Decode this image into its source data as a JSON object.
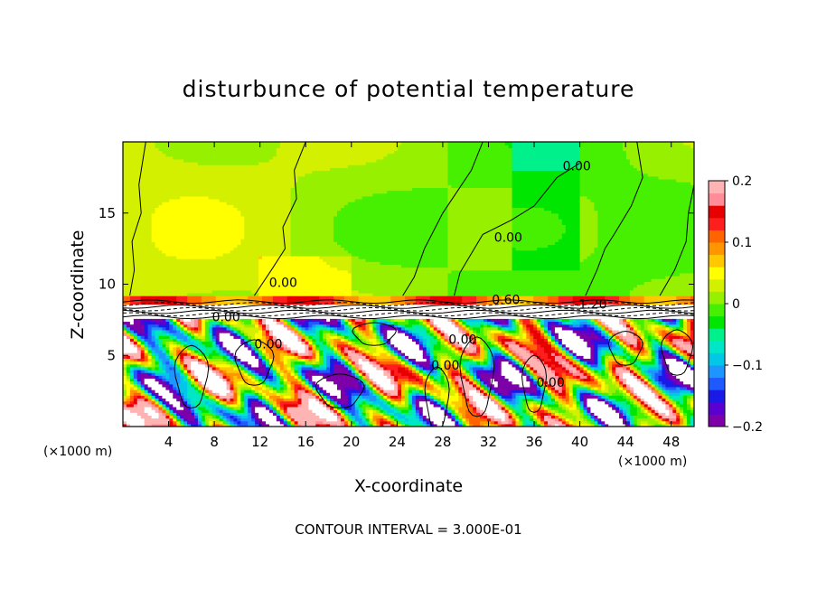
{
  "title": "disturbunce of potential temperature",
  "x_unit": "(×1000 m)",
  "x_unit_right": "(×1000 m)",
  "footnote": "CONTOUR INTERVAL = 3.000E-01",
  "colorbar": {
    "ticks": [
      0.2,
      0.1,
      0,
      -0.1,
      -0.2
    ],
    "tick_labels": [
      "0.2",
      "0.1",
      "0",
      "−0.1",
      "−0.2"
    ],
    "colors": [
      "#7d00a8",
      "#5a00d0",
      "#1a1ae6",
      "#1e5aff",
      "#1e96ff",
      "#00c8e6",
      "#00e6c8",
      "#00f08c",
      "#00e600",
      "#46f000",
      "#96f000",
      "#d2f000",
      "#ffff00",
      "#ffc800",
      "#ff9600",
      "#ff6400",
      "#ff1e1e",
      "#e60000",
      "#ff8c96",
      "#ffb4b4"
    ]
  },
  "chart_data": {
    "type": "heatmap",
    "title": "disturbunce of potential temperature",
    "xlabel": "X-coordinate",
    "ylabel": "Z-coordinate",
    "x_unit": "(×1000 m)",
    "xlim": [
      0,
      50
    ],
    "ylim": [
      0,
      20
    ],
    "x_ticks": [
      4,
      8,
      12,
      16,
      20,
      24,
      28,
      32,
      36,
      40,
      44,
      48
    ],
    "y_ticks": [
      5,
      10,
      15
    ],
    "colorbar_range": [
      -0.2,
      0.2
    ],
    "contour_interval": 0.3,
    "contour_labels": [
      "0.00",
      "0.00",
      "0.00",
      "0.00",
      "0.00",
      "0.00",
      "0.00",
      "0.00",
      "0.60",
      "-1.20"
    ],
    "grid": false
  }
}
